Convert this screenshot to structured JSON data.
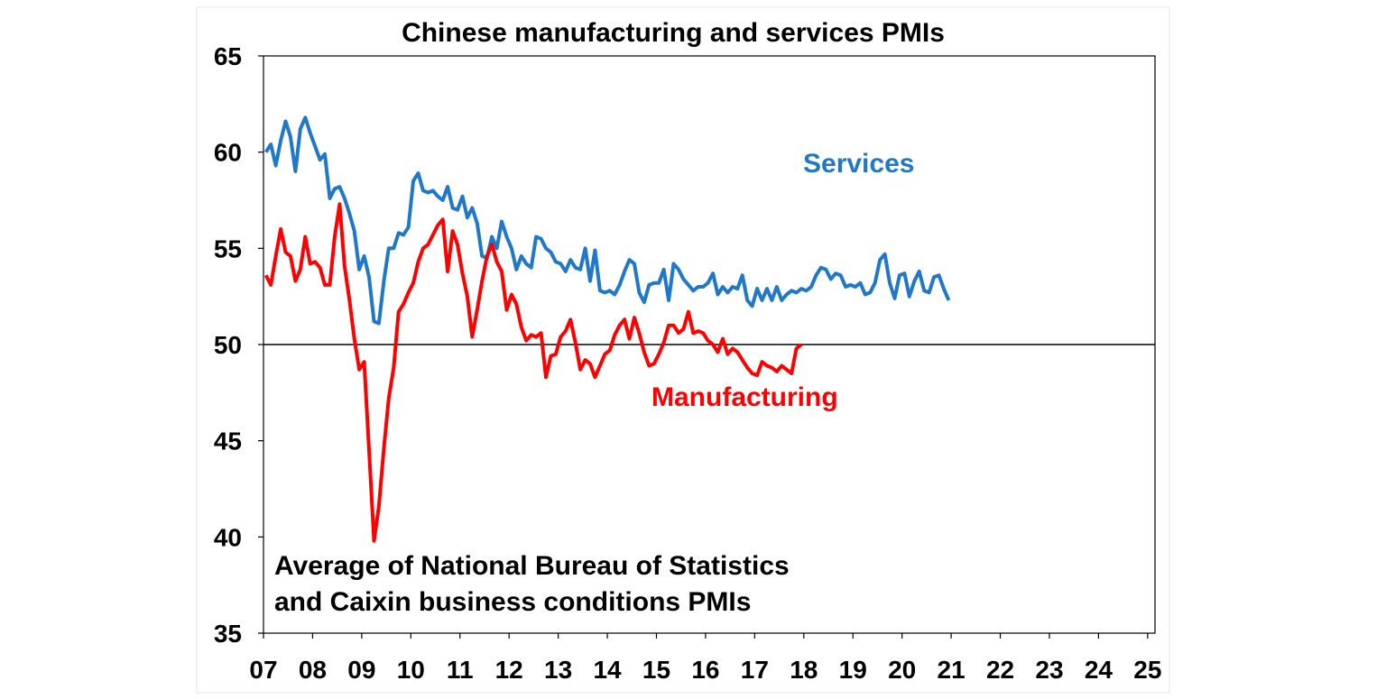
{
  "chart_data": {
    "type": "line",
    "title": "Chinese manufacturing and services PMIs",
    "note_lines": [
      "Average of National Bureau of Statistics",
      "and Caixin business conditions PMIs"
    ],
    "xlabel": "",
    "ylabel": "",
    "ylim": [
      35,
      65
    ],
    "yticks": [
      35,
      40,
      45,
      50,
      55,
      60,
      65
    ],
    "ytick_labels": [
      "35",
      "40",
      "45",
      "50",
      "55",
      "60",
      "65"
    ],
    "x_range": [
      2007.0,
      2025.15
    ],
    "xticks": [
      2007,
      2008,
      2009,
      2010,
      2011,
      2012,
      2013,
      2014,
      2015,
      2016,
      2017,
      2018,
      2019,
      2020,
      2021,
      2022,
      2023,
      2024,
      2025
    ],
    "xtick_labels": [
      "07",
      "08",
      "09",
      "10",
      "11",
      "12",
      "13",
      "14",
      "15",
      "16",
      "17",
      "18",
      "19",
      "20",
      "21",
      "22",
      "23",
      "24",
      "25"
    ],
    "reference_line": 50,
    "grid": false,
    "colors": {
      "services": "#1f78c8",
      "manufacturing": "#ff0000",
      "reference": "#000000"
    },
    "series": [
      {
        "name": "Services",
        "color": "#1f78c8",
        "points": [
          [
            2007.05,
            60.0
          ],
          [
            2007.15,
            60.4
          ],
          [
            2007.25,
            59.3
          ],
          [
            2007.35,
            60.6
          ],
          [
            2007.45,
            61.6
          ],
          [
            2007.55,
            60.8
          ],
          [
            2007.65,
            59.0
          ],
          [
            2007.75,
            61.2
          ],
          [
            2007.85,
            61.8
          ],
          [
            2007.95,
            61.0
          ],
          [
            2008.05,
            60.3
          ],
          [
            2008.15,
            59.6
          ],
          [
            2008.25,
            59.9
          ],
          [
            2008.35,
            57.6
          ],
          [
            2008.45,
            58.1
          ],
          [
            2008.55,
            58.2
          ],
          [
            2008.65,
            57.6
          ],
          [
            2008.75,
            56.8
          ],
          [
            2008.85,
            55.9
          ],
          [
            2008.95,
            53.9
          ],
          [
            2009.05,
            54.6
          ],
          [
            2009.15,
            53.5
          ],
          [
            2009.25,
            51.2
          ],
          [
            2009.35,
            51.1
          ],
          [
            2009.45,
            53.3
          ],
          [
            2009.55,
            55.0
          ],
          [
            2009.65,
            55.0
          ],
          [
            2009.75,
            55.8
          ],
          [
            2009.85,
            55.7
          ],
          [
            2009.95,
            56.1
          ],
          [
            2010.05,
            58.5
          ],
          [
            2010.15,
            58.9
          ],
          [
            2010.25,
            58.0
          ],
          [
            2010.35,
            57.9
          ],
          [
            2010.45,
            58.0
          ],
          [
            2010.55,
            57.7
          ],
          [
            2010.65,
            57.5
          ],
          [
            2010.75,
            58.2
          ],
          [
            2010.85,
            57.1
          ],
          [
            2010.95,
            57.0
          ],
          [
            2011.05,
            57.7
          ],
          [
            2011.15,
            56.6
          ],
          [
            2011.25,
            57.1
          ],
          [
            2011.35,
            56.3
          ],
          [
            2011.45,
            54.6
          ],
          [
            2011.55,
            54.5
          ],
          [
            2011.65,
            55.6
          ],
          [
            2011.75,
            55.0
          ],
          [
            2011.85,
            56.4
          ],
          [
            2011.95,
            55.6
          ],
          [
            2012.05,
            55.0
          ],
          [
            2012.15,
            53.9
          ],
          [
            2012.25,
            54.6
          ],
          [
            2012.35,
            54.2
          ],
          [
            2012.45,
            54.0
          ],
          [
            2012.55,
            55.6
          ],
          [
            2012.65,
            55.5
          ],
          [
            2012.75,
            55.0
          ],
          [
            2012.85,
            54.8
          ],
          [
            2012.95,
            54.3
          ],
          [
            2013.05,
            54.2
          ],
          [
            2013.15,
            53.8
          ],
          [
            2013.25,
            54.4
          ],
          [
            2013.35,
            54.0
          ],
          [
            2013.45,
            53.9
          ],
          [
            2013.55,
            55.0
          ],
          [
            2013.65,
            53.3
          ],
          [
            2013.75,
            54.9
          ],
          [
            2013.85,
            52.8
          ],
          [
            2013.95,
            52.7
          ],
          [
            2014.05,
            52.8
          ],
          [
            2014.15,
            52.6
          ],
          [
            2014.25,
            53.1
          ],
          [
            2014.35,
            53.8
          ],
          [
            2014.45,
            54.4
          ],
          [
            2014.55,
            54.2
          ],
          [
            2014.65,
            52.7
          ],
          [
            2014.75,
            52.2
          ],
          [
            2014.85,
            53.1
          ],
          [
            2014.95,
            53.2
          ],
          [
            2015.05,
            53.2
          ],
          [
            2015.15,
            53.9
          ],
          [
            2015.25,
            52.3
          ],
          [
            2015.35,
            54.2
          ],
          [
            2015.45,
            53.9
          ],
          [
            2015.55,
            53.4
          ],
          [
            2015.65,
            53.1
          ],
          [
            2015.75,
            52.8
          ],
          [
            2015.85,
            53.0
          ],
          [
            2015.95,
            53.0
          ],
          [
            2016.05,
            53.2
          ],
          [
            2016.15,
            53.7
          ],
          [
            2016.25,
            52.6
          ],
          [
            2016.35,
            53.0
          ],
          [
            2016.45,
            52.7
          ],
          [
            2016.55,
            53.0
          ],
          [
            2016.65,
            52.9
          ],
          [
            2016.75,
            53.6
          ],
          [
            2016.85,
            52.3
          ],
          [
            2016.95,
            52.0
          ],
          [
            2017.05,
            52.9
          ],
          [
            2017.15,
            52.3
          ],
          [
            2017.25,
            52.9
          ],
          [
            2017.35,
            52.3
          ],
          [
            2017.45,
            53.0
          ],
          [
            2017.55,
            52.3
          ],
          [
            2017.65,
            52.6
          ],
          [
            2017.75,
            52.8
          ],
          [
            2017.85,
            52.7
          ],
          [
            2017.95,
            52.9
          ],
          [
            2018.05,
            52.8
          ],
          [
            2018.15,
            53.0
          ],
          [
            2018.25,
            53.6
          ],
          [
            2018.35,
            54.0
          ],
          [
            2018.45,
            53.9
          ],
          [
            2018.55,
            53.4
          ],
          [
            2018.65,
            53.7
          ],
          [
            2018.75,
            53.6
          ],
          [
            2018.85,
            53.0
          ],
          [
            2018.95,
            53.1
          ],
          [
            2019.05,
            53.0
          ],
          [
            2019.15,
            53.2
          ],
          [
            2019.25,
            52.6
          ],
          [
            2019.35,
            52.7
          ],
          [
            2019.45,
            53.2
          ],
          [
            2019.55,
            54.4
          ],
          [
            2019.65,
            54.7
          ],
          [
            2019.75,
            53.2
          ],
          [
            2019.85,
            52.4
          ],
          [
            2019.95,
            53.6
          ],
          [
            2020.05,
            53.7
          ],
          [
            2020.15,
            52.5
          ],
          [
            2020.25,
            53.3
          ],
          [
            2020.35,
            53.8
          ],
          [
            2020.45,
            52.8
          ],
          [
            2020.55,
            52.7
          ],
          [
            2020.65,
            53.5
          ],
          [
            2020.75,
            53.6
          ],
          [
            2020.85,
            52.9
          ],
          [
            2020.95,
            52.3
          ]
        ]
      },
      {
        "name": "Manufacturing",
        "color": "#ff0000",
        "points": [
          [
            2007.05,
            53.6
          ],
          [
            2007.15,
            53.1
          ],
          [
            2007.25,
            54.6
          ],
          [
            2007.35,
            56.0
          ],
          [
            2007.45,
            54.8
          ],
          [
            2007.55,
            54.6
          ],
          [
            2007.65,
            53.3
          ],
          [
            2007.75,
            53.9
          ],
          [
            2007.85,
            55.6
          ],
          [
            2007.95,
            54.2
          ],
          [
            2008.05,
            54.3
          ],
          [
            2008.15,
            54.0
          ],
          [
            2008.25,
            53.1
          ],
          [
            2008.35,
            53.1
          ],
          [
            2008.45,
            55.6
          ],
          [
            2008.55,
            57.3
          ],
          [
            2008.65,
            54.1
          ],
          [
            2008.75,
            52.3
          ],
          [
            2008.85,
            50.3
          ],
          [
            2008.95,
            48.7
          ],
          [
            2009.05,
            49.1
          ],
          [
            2009.15,
            44.5
          ],
          [
            2009.25,
            39.8
          ],
          [
            2009.35,
            41.6
          ],
          [
            2009.45,
            44.6
          ],
          [
            2009.55,
            47.2
          ],
          [
            2009.65,
            48.8
          ],
          [
            2009.75,
            51.7
          ],
          [
            2009.85,
            52.1
          ],
          [
            2009.95,
            52.7
          ],
          [
            2010.05,
            53.2
          ],
          [
            2010.15,
            54.3
          ],
          [
            2010.25,
            55.0
          ],
          [
            2010.35,
            55.2
          ],
          [
            2010.45,
            55.7
          ],
          [
            2010.55,
            56.2
          ],
          [
            2010.65,
            56.5
          ],
          [
            2010.75,
            53.8
          ],
          [
            2010.85,
            55.9
          ],
          [
            2010.95,
            55.2
          ],
          [
            2011.05,
            53.7
          ],
          [
            2011.15,
            52.5
          ],
          [
            2011.25,
            50.4
          ],
          [
            2011.35,
            51.8
          ],
          [
            2011.45,
            53.3
          ],
          [
            2011.55,
            54.6
          ],
          [
            2011.65,
            55.2
          ],
          [
            2011.75,
            54.3
          ],
          [
            2011.85,
            53.8
          ],
          [
            2011.95,
            51.8
          ],
          [
            2012.05,
            52.6
          ],
          [
            2012.15,
            52.1
          ],
          [
            2012.25,
            50.9
          ],
          [
            2012.35,
            50.2
          ],
          [
            2012.45,
            50.5
          ],
          [
            2012.55,
            50.4
          ],
          [
            2012.65,
            50.6
          ],
          [
            2012.75,
            48.3
          ],
          [
            2012.85,
            49.4
          ],
          [
            2012.95,
            49.5
          ],
          [
            2013.05,
            50.4
          ],
          [
            2013.15,
            50.7
          ],
          [
            2013.25,
            51.3
          ],
          [
            2013.35,
            50.1
          ],
          [
            2013.45,
            48.7
          ],
          [
            2013.55,
            49.2
          ],
          [
            2013.65,
            49.0
          ],
          [
            2013.75,
            48.3
          ],
          [
            2013.85,
            48.9
          ],
          [
            2013.95,
            49.5
          ],
          [
            2014.05,
            49.7
          ],
          [
            2014.15,
            50.5
          ],
          [
            2014.25,
            51.0
          ],
          [
            2014.35,
            51.3
          ],
          [
            2014.45,
            50.3
          ],
          [
            2014.55,
            51.4
          ],
          [
            2014.65,
            50.6
          ],
          [
            2014.75,
            49.6
          ],
          [
            2014.85,
            48.9
          ],
          [
            2014.95,
            49.0
          ],
          [
            2015.05,
            49.5
          ],
          [
            2015.15,
            50.1
          ],
          [
            2015.25,
            51.0
          ],
          [
            2015.35,
            51.0
          ],
          [
            2015.45,
            50.6
          ],
          [
            2015.55,
            50.8
          ],
          [
            2015.65,
            51.7
          ],
          [
            2015.75,
            50.6
          ],
          [
            2015.85,
            50.7
          ],
          [
            2015.95,
            50.6
          ],
          [
            2016.05,
            50.2
          ],
          [
            2016.15,
            50.0
          ],
          [
            2016.25,
            49.6
          ],
          [
            2016.35,
            50.3
          ],
          [
            2016.45,
            49.5
          ],
          [
            2016.55,
            49.8
          ],
          [
            2016.65,
            49.6
          ],
          [
            2016.75,
            49.2
          ],
          [
            2016.85,
            48.8
          ],
          [
            2016.95,
            48.5
          ],
          [
            2017.05,
            48.4
          ],
          [
            2017.15,
            49.1
          ],
          [
            2017.25,
            48.9
          ],
          [
            2017.35,
            48.8
          ],
          [
            2017.45,
            48.6
          ],
          [
            2017.55,
            48.9
          ],
          [
            2017.65,
            48.7
          ],
          [
            2017.75,
            48.5
          ],
          [
            2017.85,
            49.8
          ],
          [
            2017.95,
            50.0
          ]
        ]
      }
    ]
  }
}
